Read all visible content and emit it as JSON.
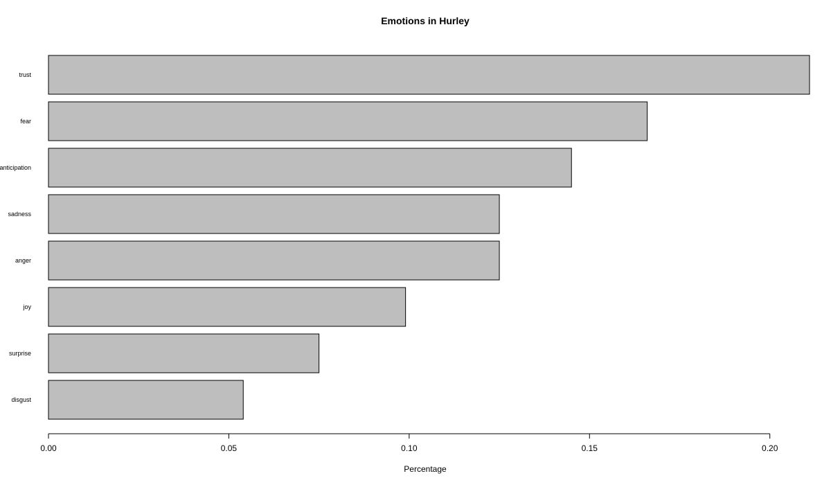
{
  "chart_data": {
    "type": "bar",
    "orientation": "horizontal",
    "title": "Emotions in Hurley",
    "xlabel": "Percentage",
    "ylabel": "",
    "categories": [
      "trust",
      "fear",
      "anticipation",
      "sadness",
      "anger",
      "joy",
      "surprise",
      "disgust"
    ],
    "values": [
      0.211,
      0.166,
      0.145,
      0.125,
      0.125,
      0.099,
      0.075,
      0.054
    ],
    "xlim": [
      0,
      0.211
    ],
    "xticks": [
      "0.00",
      "0.05",
      "0.10",
      "0.15",
      "0.20"
    ],
    "xtick_values": [
      0,
      0.05,
      0.1,
      0.15,
      0.2
    ],
    "grid": false,
    "legend": "none",
    "bar_color": "#bebebe",
    "bar_edge_color": "#000000"
  }
}
